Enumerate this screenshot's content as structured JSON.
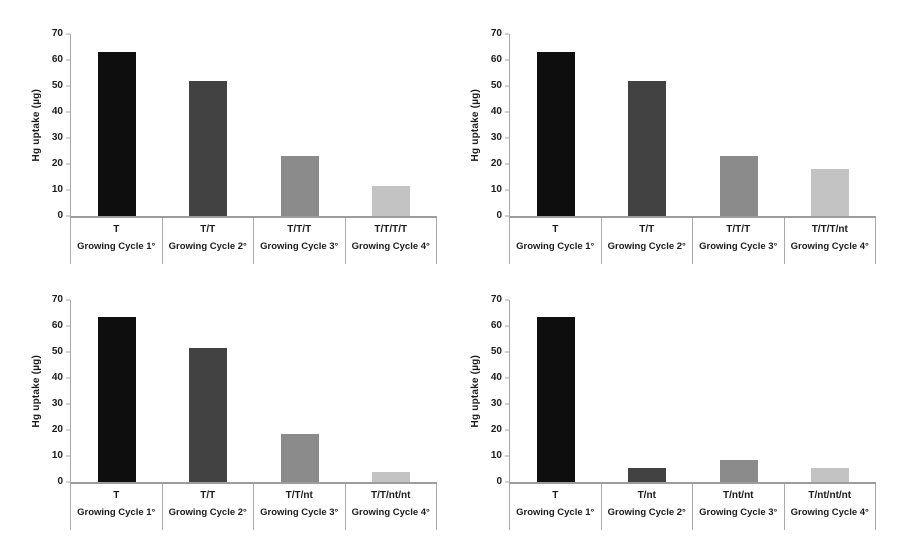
{
  "figure": {
    "background_color": "#ffffff",
    "layout": "2x2 grid of bar charts",
    "text_color": "#1c1c1c",
    "axis_color": "#a6a6a6",
    "baseline_color": "#9c9c9c",
    "divider_color": "#ababab",
    "bar_colors": [
      "#0e0e0e",
      "#424242",
      "#8b8b8b",
      "#c3c3c3"
    ]
  },
  "chart_data": [
    {
      "type": "bar",
      "position": "top-left",
      "title": "",
      "xlabel": "",
      "ylabel": "Hg uptake (µg)",
      "ylim": [
        0,
        70
      ],
      "yticks": [
        0,
        10,
        20,
        30,
        40,
        50,
        60,
        70
      ],
      "grid": false,
      "legend": false,
      "categories": [
        "T",
        "T/T",
        "T/T/T",
        "T/T/T/T"
      ],
      "category_sublabels": [
        "Growing Cycle 1°",
        "Growing Cycle 2°",
        "Growing Cycle 3°",
        "Growing Cycle 4°"
      ],
      "values": [
        63,
        52,
        23,
        11.5
      ],
      "bar_colors": [
        "#0e0e0e",
        "#424242",
        "#8b8b8b",
        "#c3c3c3"
      ]
    },
    {
      "type": "bar",
      "position": "top-right",
      "title": "",
      "xlabel": "",
      "ylabel": "Hg uptake (µg)",
      "ylim": [
        0,
        70
      ],
      "yticks": [
        0,
        10,
        20,
        30,
        40,
        50,
        60,
        70
      ],
      "grid": false,
      "legend": false,
      "categories": [
        "T",
        "T/T",
        "T/T/T",
        "T/T/T/nt"
      ],
      "category_sublabels": [
        "Growing Cycle 1°",
        "Growing Cycle 2°",
        "Growing Cycle 3°",
        "Growing Cycle 4°"
      ],
      "values": [
        63,
        52,
        23,
        18
      ],
      "bar_colors": [
        "#0e0e0e",
        "#424242",
        "#8b8b8b",
        "#c3c3c3"
      ]
    },
    {
      "type": "bar",
      "position": "bottom-left",
      "title": "",
      "xlabel": "",
      "ylabel": "Hg uptake (µg)",
      "ylim": [
        0,
        70
      ],
      "yticks": [
        0,
        10,
        20,
        30,
        40,
        50,
        60,
        70
      ],
      "grid": false,
      "legend": false,
      "categories": [
        "T",
        "T/T",
        "T/T/nt",
        "T/T/nt/nt"
      ],
      "category_sublabels": [
        "Growing Cycle 1°",
        "Growing Cycle 2°",
        "Growing Cycle 3°",
        "Growing Cycle 4°"
      ],
      "values": [
        63.5,
        51.5,
        18.5,
        4
      ],
      "bar_colors": [
        "#0e0e0e",
        "#424242",
        "#8b8b8b",
        "#c3c3c3"
      ]
    },
    {
      "type": "bar",
      "position": "bottom-right",
      "title": "",
      "xlabel": "",
      "ylabel": "Hg uptake (µg)",
      "ylim": [
        0,
        70
      ],
      "yticks": [
        0,
        10,
        20,
        30,
        40,
        50,
        60,
        70
      ],
      "grid": false,
      "legend": false,
      "categories": [
        "T",
        "T/nt",
        "T/nt/nt",
        "T/nt/nt/nt"
      ],
      "category_sublabels": [
        "Growing Cycle 1°",
        "Growing Cycle 2°",
        "Growing Cycle 3°",
        "Growing Cycle 4°"
      ],
      "values": [
        63.5,
        5.5,
        8.5,
        5.5
      ],
      "bar_colors": [
        "#0e0e0e",
        "#424242",
        "#8b8b8b",
        "#c3c3c3"
      ]
    }
  ]
}
